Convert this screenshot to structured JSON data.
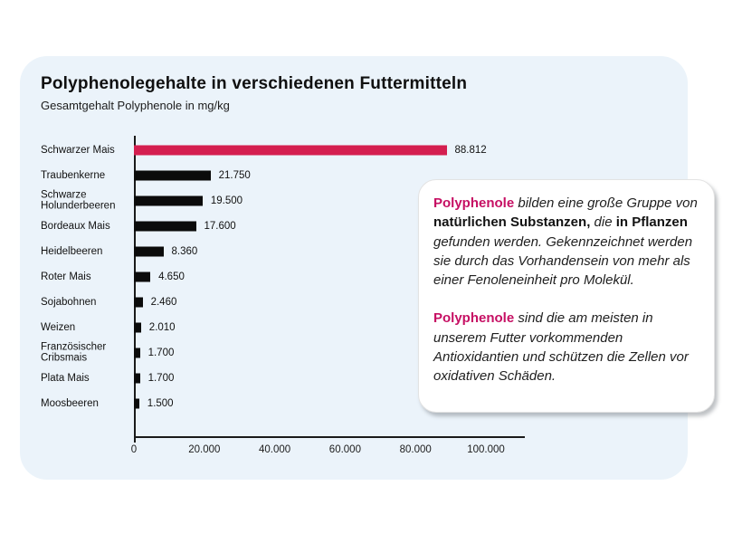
{
  "colors": {
    "accent_bar": "#d41e4f",
    "accent_text": "#c60f63",
    "bar_default": "#0b0b0b",
    "card_bg": "#ebf3fa"
  },
  "card": {
    "title": "Polyphenolegehalte in verschiedenen Futtermitteln",
    "subtitle": "Gesamtgehalt Polyphenole in mg/kg"
  },
  "chart_data": {
    "type": "bar",
    "orientation": "horizontal",
    "title": "Polyphenolegehalte in verschiedenen Futtermitteln",
    "subtitle": "Gesamtgehalt Polyphenole in mg/kg",
    "unit": "mg/kg",
    "categories": [
      "Schwarzer Mais",
      "Traubenkerne",
      "Schwarze Holunderbeeren",
      "Bordeaux Mais",
      "Heidelbeeren",
      "Roter Mais",
      "Sojabohnen",
      "Weizen",
      "Französischer Cribsmais",
      "Plata Mais",
      "Moosbeeren"
    ],
    "values": [
      88812,
      21750,
      19500,
      17600,
      8360,
      4650,
      2460,
      2010,
      1700,
      1700,
      1500
    ],
    "value_labels": [
      "88.812",
      "21.750",
      "19.500",
      "17.600",
      "8.360",
      "4.650",
      "2.460",
      "2.010",
      "1.700",
      "1.700",
      "1.500"
    ],
    "highlight_index": 0,
    "xlim": [
      0,
      100000
    ],
    "x_ticks": [
      0,
      20000,
      40000,
      60000,
      80000,
      100000
    ],
    "x_tick_labels": [
      "0",
      "20.000",
      "40.000",
      "60.000",
      "80.000",
      "100.000"
    ],
    "grid": false,
    "legend": false
  },
  "infobox": {
    "paragraphs": [
      [
        {
          "text": "Polyphenole",
          "style": "accent"
        },
        {
          "text": " bilden eine große Gruppe von ",
          "style": "italic"
        },
        {
          "text": "natürlichen Substanzen,",
          "style": "bold"
        },
        {
          "text": " die ",
          "style": "italic"
        },
        {
          "text": "in Pflanzen",
          "style": "bold"
        },
        {
          "text": " gefunden werden. Gekennzeichnet werden sie durch das Vorhandensein von mehr als einer Fenoleneinheit pro Molekül.",
          "style": "italic"
        }
      ],
      [
        {
          "text": "Polyphenole",
          "style": "accent"
        },
        {
          "text": " sind die am meisten in unserem Futter vorkommenden Antioxidantien und schützen die Zellen vor oxidativen Schäden.",
          "style": "italic"
        }
      ]
    ]
  }
}
